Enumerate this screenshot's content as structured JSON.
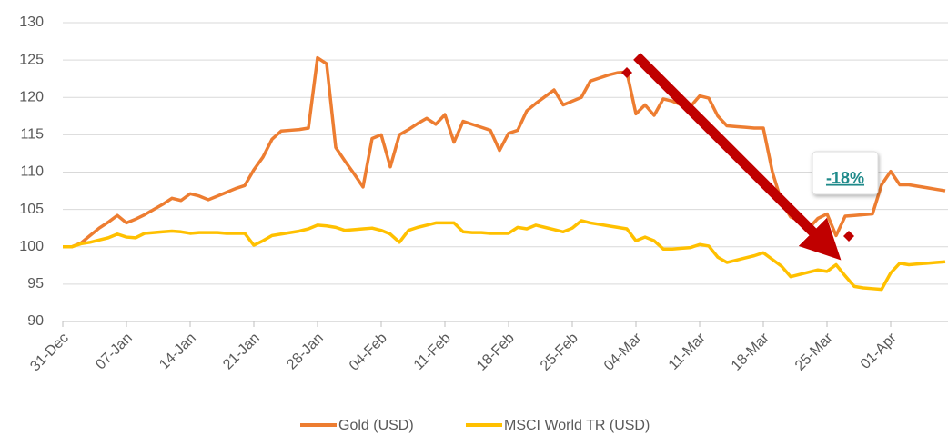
{
  "chart_data": {
    "type": "line",
    "annotation": "-18%",
    "categories": [
      "31-Dec",
      null,
      null,
      null,
      null,
      null,
      null,
      "07-Jan",
      null,
      null,
      null,
      null,
      null,
      null,
      "14-Jan",
      null,
      null,
      null,
      null,
      null,
      null,
      "21-Jan",
      null,
      null,
      null,
      null,
      null,
      null,
      "28-Jan",
      null,
      null,
      null,
      null,
      null,
      null,
      "04-Feb",
      null,
      null,
      null,
      null,
      null,
      null,
      "11-Feb",
      null,
      null,
      null,
      null,
      null,
      null,
      "18-Feb",
      null,
      null,
      null,
      null,
      null,
      null,
      "25-Feb",
      null,
      null,
      null,
      null,
      null,
      null,
      "04-Mar",
      null,
      null,
      null,
      null,
      null,
      null,
      "11-Mar",
      null,
      null,
      null,
      null,
      null,
      null,
      "18-Mar",
      null,
      null,
      null,
      null,
      null,
      null,
      "25-Mar",
      null,
      null,
      null,
      null,
      null,
      null,
      "01-Apr",
      null,
      null,
      null,
      null,
      null,
      null
    ],
    "series": [
      {
        "name": "Gold (USD)",
        "color": "#ED7D31",
        "values": [
          100,
          100,
          100.5,
          101.5,
          102.5,
          103.3,
          104.2,
          103.2,
          103.7,
          104.3,
          105,
          105.7,
          106.5,
          106.2,
          107.1,
          106.8,
          106.3,
          106.8,
          107.3,
          107.8,
          108.2,
          110.3,
          112,
          114.4,
          115.5,
          115.6,
          115.7,
          115.9,
          125.3,
          124.5,
          113.3,
          111.5,
          109.8,
          108,
          114.5,
          115,
          110.7,
          115,
          115.7,
          116.5,
          117.2,
          116.4,
          117.7,
          114,
          116.8,
          116.4,
          116,
          115.6,
          112.9,
          115.2,
          115.6,
          118.2,
          119.2,
          120.1,
          121,
          119,
          119.5,
          120,
          122.2,
          122.6,
          123,
          123.3,
          123.4,
          117.8,
          119,
          117.6,
          119.8,
          119.5,
          119,
          118.8,
          120.2,
          119.9,
          117.5,
          116.2,
          116.1,
          116,
          115.9,
          115.9,
          110,
          106,
          104,
          103.5,
          102.5,
          103.8,
          104.4,
          101.5,
          104.1,
          104.2,
          104.3,
          104.4,
          108.3,
          110.1,
          108.3,
          108.3,
          108.1,
          107.9,
          107.7,
          107.5
        ]
      },
      {
        "name": "MSCI World TR (USD)",
        "color": "#FFC000",
        "values": [
          100,
          100,
          100.4,
          100.6,
          100.9,
          101.2,
          101.7,
          101.3,
          101.2,
          101.8,
          101.9,
          102,
          102.1,
          102,
          101.8,
          101.9,
          101.9,
          101.9,
          101.8,
          101.8,
          101.8,
          100.2,
          100.8,
          101.5,
          101.7,
          101.9,
          102.1,
          102.4,
          102.9,
          102.8,
          102.6,
          102.2,
          102.3,
          102.4,
          102.5,
          102.2,
          101.7,
          100.6,
          102.2,
          102.6,
          102.9,
          103.2,
          103.2,
          103.2,
          102,
          101.9,
          101.9,
          101.8,
          101.8,
          101.8,
          102.6,
          102.4,
          102.9,
          102.6,
          102.3,
          102,
          102.5,
          103.5,
          103.2,
          103,
          102.8,
          102.6,
          102.4,
          100.8,
          101.3,
          100.8,
          99.7,
          99.7,
          99.8,
          99.9,
          100.3,
          100.1,
          98.6,
          97.9,
          98.2,
          98.5,
          98.8,
          99.2,
          98.3,
          97.4,
          96,
          96.3,
          96.6,
          96.9,
          96.7,
          97.6,
          96.1,
          94.7,
          94.5,
          94.4,
          94.3,
          96.5,
          97.8,
          97.6,
          97.7,
          97.8,
          97.9,
          98
        ]
      }
    ],
    "ylim": [
      90,
      130
    ],
    "yticks": [
      90,
      95,
      100,
      105,
      110,
      115,
      120,
      125,
      130
    ],
    "grid": true,
    "legend": "bottom"
  }
}
